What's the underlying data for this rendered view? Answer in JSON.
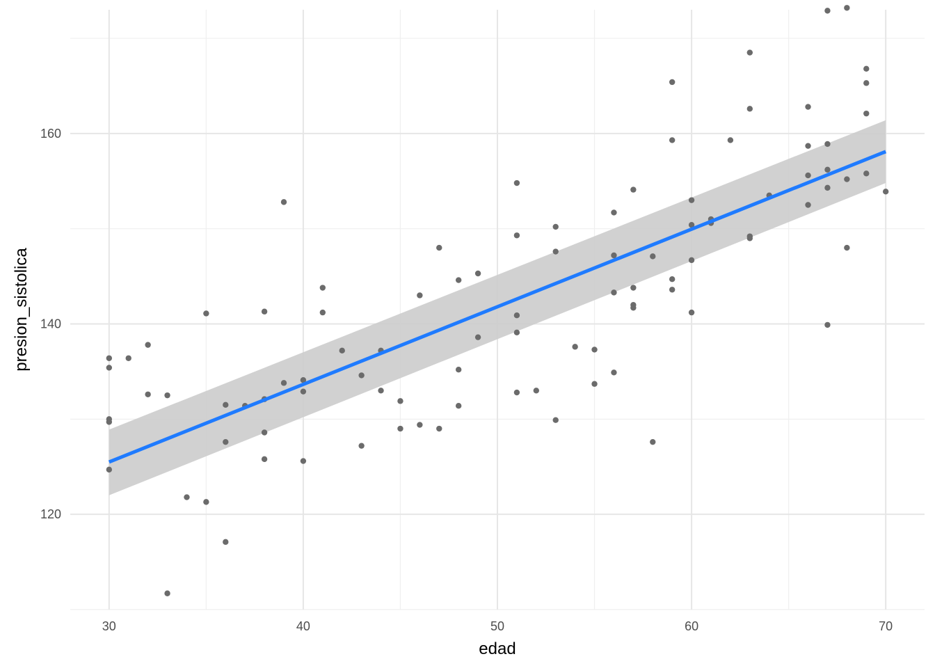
{
  "chart_data": {
    "type": "scatter",
    "title": "",
    "xlabel": "edad",
    "ylabel": "presion_sistolica",
    "xlim": [
      28,
      72
    ],
    "ylim": [
      110,
      173
    ],
    "x_ticks": [
      30,
      40,
      50,
      60,
      70
    ],
    "y_ticks": [
      120,
      140,
      160
    ],
    "x_minor": [
      35,
      45,
      55,
      65
    ],
    "y_minor": [
      110,
      130,
      150,
      170
    ],
    "grid": true,
    "colors": {
      "points": "#6b6b6b",
      "line": "#1f7bff",
      "band": "#cccccc"
    },
    "regression": {
      "x": [
        30,
        70
      ],
      "y": [
        125.5,
        158.1
      ],
      "ci_lower": [
        122.0,
        154.8
      ],
      "ci_upper": [
        128.9,
        161.4
      ]
    },
    "points": [
      [
        30,
        136.4
      ],
      [
        30,
        135.4
      ],
      [
        30,
        130.0
      ],
      [
        30,
        129.7
      ],
      [
        30,
        124.7
      ],
      [
        31,
        136.4
      ],
      [
        32,
        137.8
      ],
      [
        32,
        132.6
      ],
      [
        33,
        132.5
      ],
      [
        33,
        111.7
      ],
      [
        34,
        121.8
      ],
      [
        35,
        141.1
      ],
      [
        35,
        121.3
      ],
      [
        36,
        131.5
      ],
      [
        36,
        127.6
      ],
      [
        36,
        117.1
      ],
      [
        37,
        131.4
      ],
      [
        38,
        141.3
      ],
      [
        38,
        132.1
      ],
      [
        38,
        128.6
      ],
      [
        38,
        125.8
      ],
      [
        39,
        152.8
      ],
      [
        39,
        133.8
      ],
      [
        40,
        134.1
      ],
      [
        40,
        132.9
      ],
      [
        40,
        125.6
      ],
      [
        41,
        143.8
      ],
      [
        41,
        141.2
      ],
      [
        42,
        137.2
      ],
      [
        43,
        134.6
      ],
      [
        43,
        127.2
      ],
      [
        44,
        137.2
      ],
      [
        44,
        133.0
      ],
      [
        45,
        131.9
      ],
      [
        45,
        129.0
      ],
      [
        46,
        143.0
      ],
      [
        46,
        129.4
      ],
      [
        47,
        148.0
      ],
      [
        47,
        129.0
      ],
      [
        48,
        144.6
      ],
      [
        48,
        135.2
      ],
      [
        48,
        131.4
      ],
      [
        49,
        145.3
      ],
      [
        49,
        138.6
      ],
      [
        51,
        154.8
      ],
      [
        51,
        149.3
      ],
      [
        51,
        140.9
      ],
      [
        51,
        139.1
      ],
      [
        51,
        132.8
      ],
      [
        52,
        133.0
      ],
      [
        53,
        150.2
      ],
      [
        53,
        147.6
      ],
      [
        53,
        129.9
      ],
      [
        54,
        137.6
      ],
      [
        55,
        137.3
      ],
      [
        55,
        133.7
      ],
      [
        56,
        151.7
      ],
      [
        56,
        147.2
      ],
      [
        56,
        143.3
      ],
      [
        56,
        134.9
      ],
      [
        57,
        154.1
      ],
      [
        57,
        143.8
      ],
      [
        57,
        142.0
      ],
      [
        57,
        141.7
      ],
      [
        58,
        147.1
      ],
      [
        58,
        127.6
      ],
      [
        59,
        165.4
      ],
      [
        59,
        159.3
      ],
      [
        59,
        144.7
      ],
      [
        59,
        143.6
      ],
      [
        60,
        153.0
      ],
      [
        60,
        150.4
      ],
      [
        60,
        146.7
      ],
      [
        60,
        141.2
      ],
      [
        61,
        151.0
      ],
      [
        61,
        150.6
      ],
      [
        62,
        159.3
      ],
      [
        63,
        168.5
      ],
      [
        63,
        162.6
      ],
      [
        63,
        149.2
      ],
      [
        63,
        149.0
      ],
      [
        64,
        153.5
      ],
      [
        66,
        162.8
      ],
      [
        66,
        158.7
      ],
      [
        66,
        155.6
      ],
      [
        66,
        152.5
      ],
      [
        67,
        172.9
      ],
      [
        67,
        158.9
      ],
      [
        67,
        156.2
      ],
      [
        67,
        154.3
      ],
      [
        67,
        139.9
      ],
      [
        68,
        173.2
      ],
      [
        68,
        155.2
      ],
      [
        68,
        148.0
      ],
      [
        69,
        166.8
      ],
      [
        69,
        165.3
      ],
      [
        69,
        162.1
      ],
      [
        69,
        155.8
      ],
      [
        70,
        153.9
      ]
    ]
  }
}
